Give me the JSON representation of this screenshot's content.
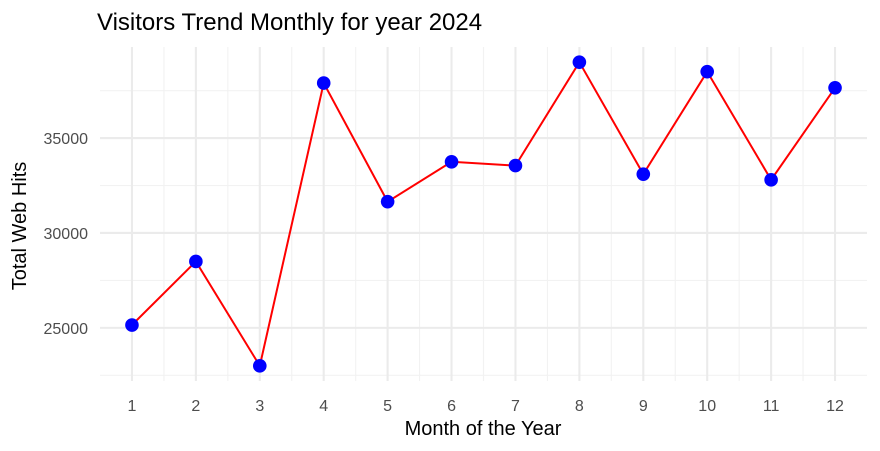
{
  "chart_data": {
    "type": "line",
    "title": "Visitors Trend Monthly for year 2024",
    "xlabel": "Month of the Year",
    "ylabel": "Total Web Hits",
    "x": [
      1,
      2,
      3,
      4,
      5,
      6,
      7,
      8,
      9,
      10,
      11,
      12
    ],
    "x_tick_labels": [
      "1",
      "2",
      "3",
      "4",
      "5",
      "6",
      "7",
      "8",
      "9",
      "10",
      "11",
      "12"
    ],
    "series": [
      {
        "values": [
          25150,
          28500,
          23000,
          37900,
          31650,
          33750,
          33550,
          39000,
          33100,
          38500,
          32800,
          37650
        ],
        "line_color": "#ff0000",
        "point_color": "#0000ff"
      }
    ],
    "y_ticks": [
      25000,
      30000,
      35000
    ],
    "y_tick_labels": [
      "25000",
      "30000",
      "35000"
    ],
    "xlim": [
      0.5,
      12.5
    ],
    "ylim": [
      22200,
      39800
    ],
    "grid": true
  }
}
